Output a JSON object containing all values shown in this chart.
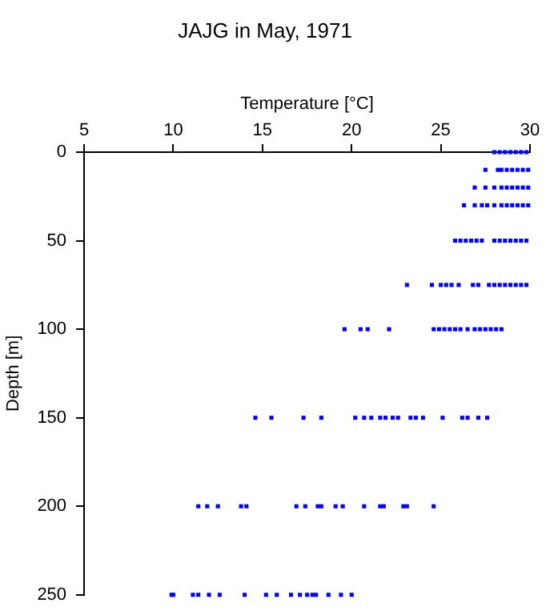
{
  "chart_data": {
    "type": "scatter",
    "title": "JAJG in May, 1971",
    "xlabel": "Temperature [°C]",
    "ylabel": "Depth [m]",
    "xlim": [
      5,
      30
    ],
    "xticks": [
      5,
      10,
      15,
      20,
      25,
      30
    ],
    "ylim": [
      250,
      0
    ],
    "yticks": [
      0,
      50,
      100,
      150,
      200,
      250
    ],
    "grid": false,
    "marker": "square",
    "series": [
      {
        "color": "#0000ff",
        "x": [
          28.0,
          28.3,
          28.6,
          28.9,
          29.2,
          29.5,
          29.8,
          27.5,
          28.2,
          28.4,
          28.7,
          29.0,
          29.3,
          29.6,
          29.9,
          26.9,
          27.5,
          28.0,
          28.4,
          28.7,
          29.0,
          29.3,
          29.6,
          29.9,
          26.3,
          26.9,
          27.3,
          27.6,
          28.0,
          28.4,
          28.7,
          29.0,
          29.3,
          29.6,
          29.9,
          25.8,
          26.1,
          26.4,
          26.7,
          27.0,
          27.3,
          28.0,
          28.3,
          28.6,
          28.9,
          29.2,
          29.5,
          29.8,
          23.1,
          24.5,
          25.0,
          25.3,
          25.6,
          26.0,
          26.8,
          27.1,
          27.7,
          28.0,
          28.3,
          28.6,
          28.9,
          29.2,
          29.5,
          29.8,
          19.6,
          20.5,
          20.9,
          22.1,
          24.6,
          24.9,
          25.2,
          25.5,
          25.8,
          26.1,
          26.5,
          26.9,
          27.2,
          27.5,
          27.8,
          28.1,
          28.4,
          14.6,
          15.5,
          17.3,
          18.3,
          20.2,
          20.7,
          21.1,
          21.6,
          21.9,
          22.3,
          22.6,
          23.3,
          23.6,
          24.0,
          25.1,
          26.2,
          26.5,
          27.1,
          27.6,
          11.4,
          11.9,
          12.5,
          13.8,
          14.1,
          16.9,
          17.4,
          18.1,
          18.3,
          19.1,
          19.5,
          20.7,
          21.6,
          21.8,
          22.9,
          23.1,
          24.6,
          9.9,
          10.0,
          11.1,
          11.4,
          12.0,
          12.6,
          14.0,
          15.2,
          15.8,
          16.6,
          17.1,
          17.5,
          17.8,
          18.0,
          18.7,
          19.4,
          20.0
        ],
        "values": [
          0,
          0,
          0,
          0,
          0,
          0,
          0,
          10,
          10,
          10,
          10,
          10,
          10,
          10,
          10,
          20,
          20,
          20,
          20,
          20,
          20,
          20,
          20,
          20,
          30,
          30,
          30,
          30,
          30,
          30,
          30,
          30,
          30,
          30,
          30,
          50,
          50,
          50,
          50,
          50,
          50,
          50,
          50,
          50,
          50,
          50,
          50,
          50,
          75,
          75,
          75,
          75,
          75,
          75,
          75,
          75,
          75,
          75,
          75,
          75,
          75,
          75,
          75,
          75,
          100,
          100,
          100,
          100,
          100,
          100,
          100,
          100,
          100,
          100,
          100,
          100,
          100,
          100,
          100,
          100,
          100,
          150,
          150,
          150,
          150,
          150,
          150,
          150,
          150,
          150,
          150,
          150,
          150,
          150,
          150,
          150,
          150,
          150,
          150,
          150,
          200,
          200,
          200,
          200,
          200,
          200,
          200,
          200,
          200,
          200,
          200,
          200,
          200,
          200,
          200,
          200,
          200,
          250,
          250,
          250,
          250,
          250,
          250,
          250,
          250,
          250,
          250,
          250,
          250,
          250,
          250,
          250,
          250,
          250
        ]
      }
    ]
  }
}
